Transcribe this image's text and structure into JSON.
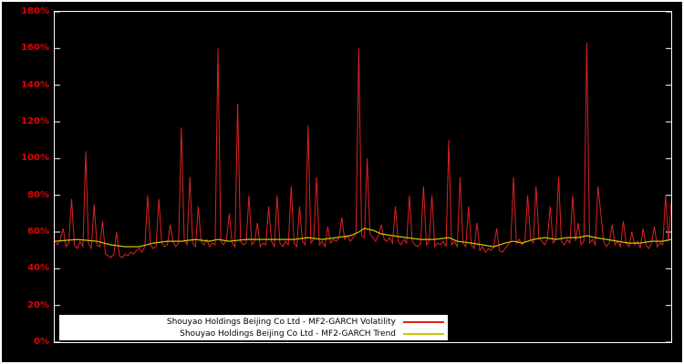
{
  "window": {
    "background": "#000000",
    "frame_color": "#ffffff"
  },
  "chart_data": {
    "type": "line",
    "title": "",
    "xlabel": "",
    "ylabel": "",
    "ylim": [
      0,
      180
    ],
    "grid": false,
    "plot_background": "#000000",
    "axis_frame_color": "#ffffff",
    "tick_label_color": "#e60000",
    "legend_position": "bottom-center",
    "y_ticks": {
      "values": [
        0,
        20,
        40,
        60,
        80,
        100,
        120,
        140,
        160,
        180
      ],
      "labels": [
        "0%",
        "20%",
        "40%",
        "60%",
        "80%",
        "100%",
        "120%",
        "140%",
        "160%",
        "180%"
      ]
    },
    "series": [
      {
        "name": "Shouyao Holdings Beijing Co Ltd - MF2-GARCH Volatility",
        "color": "#dd2222",
        "values": [
          55,
          53,
          56,
          62,
          52,
          54,
          78,
          53,
          51,
          55,
          52,
          104,
          54,
          51,
          75,
          53,
          52,
          66,
          48,
          47,
          46,
          48,
          60,
          47,
          46,
          48,
          47,
          49,
          48,
          50,
          51,
          49,
          52,
          80,
          53,
          51,
          52,
          78,
          54,
          52,
          53,
          64,
          55,
          52,
          54,
          117,
          56,
          53,
          90,
          54,
          52,
          74,
          55,
          53,
          56,
          52,
          54,
          53,
          160,
          55,
          53,
          56,
          70,
          54,
          52,
          130,
          55,
          53,
          54,
          80,
          53,
          55,
          65,
          52,
          54,
          53,
          74,
          55,
          52,
          80,
          54,
          52,
          55,
          53,
          85,
          54,
          52,
          74,
          55,
          53,
          118,
          54,
          56,
          90,
          53,
          55,
          52,
          63,
          54,
          56,
          55,
          57,
          68,
          56,
          58,
          55,
          57,
          59,
          160,
          58,
          57,
          100,
          59,
          57,
          55,
          58,
          64,
          56,
          55,
          57,
          54,
          74,
          55,
          53,
          56,
          54,
          80,
          55,
          53,
          52,
          54,
          85,
          53,
          55,
          80,
          52,
          54,
          53,
          55,
          52,
          110,
          53,
          55,
          52,
          90,
          54,
          52,
          74,
          53,
          51,
          65,
          50,
          52,
          49,
          51,
          50,
          52,
          62,
          50,
          49,
          51,
          53,
          55,
          90,
          54,
          56,
          53,
          55,
          80,
          56,
          54,
          85,
          57,
          55,
          53,
          56,
          74,
          54,
          56,
          90,
          55,
          53,
          56,
          54,
          80,
          55,
          65,
          53,
          55,
          163,
          54,
          56,
          53,
          85,
          70,
          55,
          52,
          54,
          64,
          53,
          55,
          52,
          66,
          54,
          52,
          60,
          53,
          55,
          51,
          62,
          53,
          51,
          54,
          63,
          52,
          54,
          53,
          80,
          55,
          76
        ]
      },
      {
        "name": "Shouyao Holdings Beijing Co Ltd - MF2-GARCH Trend",
        "color": "#c8c800",
        "points": [
          [
            0,
            55
          ],
          [
            8,
            56
          ],
          [
            15,
            55
          ],
          [
            20,
            53
          ],
          [
            25,
            52
          ],
          [
            30,
            52
          ],
          [
            35,
            54
          ],
          [
            40,
            55
          ],
          [
            45,
            55
          ],
          [
            50,
            56
          ],
          [
            55,
            55
          ],
          [
            58,
            56
          ],
          [
            62,
            55
          ],
          [
            68,
            56
          ],
          [
            75,
            56
          ],
          [
            80,
            56
          ],
          [
            85,
            56
          ],
          [
            90,
            57
          ],
          [
            95,
            56
          ],
          [
            100,
            57
          ],
          [
            105,
            58
          ],
          [
            108,
            60
          ],
          [
            110,
            62
          ],
          [
            113,
            61
          ],
          [
            116,
            59
          ],
          [
            120,
            58
          ],
          [
            125,
            57
          ],
          [
            130,
            56
          ],
          [
            135,
            56
          ],
          [
            140,
            57
          ],
          [
            143,
            55
          ],
          [
            148,
            54
          ],
          [
            152,
            53
          ],
          [
            156,
            52
          ],
          [
            160,
            54
          ],
          [
            163,
            55
          ],
          [
            166,
            54
          ],
          [
            170,
            56
          ],
          [
            174,
            57
          ],
          [
            178,
            56
          ],
          [
            182,
            57
          ],
          [
            186,
            57
          ],
          [
            189,
            58
          ],
          [
            192,
            57
          ],
          [
            196,
            56
          ],
          [
            200,
            55
          ],
          [
            204,
            54
          ],
          [
            208,
            54
          ],
          [
            212,
            55
          ],
          [
            216,
            55
          ],
          [
            219,
            56
          ]
        ]
      }
    ]
  },
  "legend": {
    "rows": [
      {
        "label": "Shouyao Holdings Beijing Co Ltd - MF2-GARCH Volatility"
      },
      {
        "label": "Shouyao Holdings Beijing Co Ltd - MF2-GARCH Trend"
      }
    ]
  }
}
